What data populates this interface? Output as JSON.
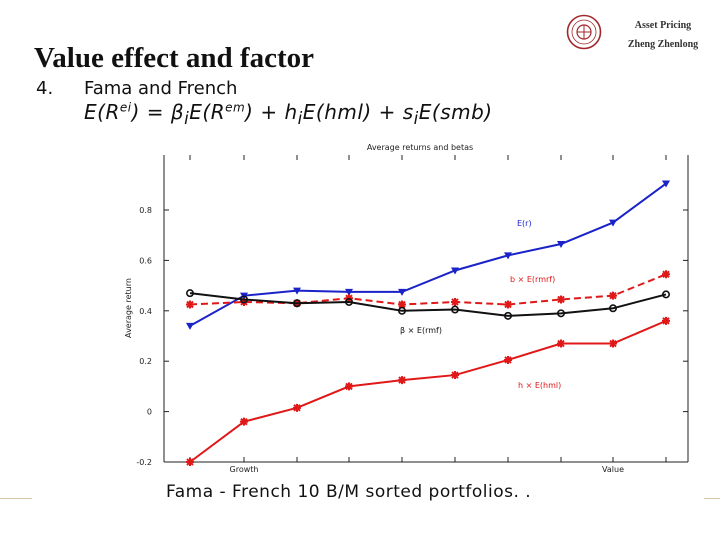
{
  "slide": {
    "title": "Value effect and factor",
    "course": "Asset Pricing",
    "author": "Zheng Zhenlong",
    "item_number": "4.",
    "item_heading": "Fama and French",
    "caption": "Fama - French 10 B/M sorted portfolios. ."
  },
  "equation": {
    "lhs": "E(R",
    "lhs_sup": "ei",
    "middle": ") = β",
    "beta_sub": "i",
    "mkt": "E(R",
    "mkt_sup": "em",
    "rest": ") + h",
    "h_sub": "i",
    "hml": "E(hml) + s",
    "s_sub": "i",
    "smb": "E(smb)"
  },
  "colors": {
    "blue": "#1a22c8",
    "red": "#e01818",
    "black": "#111111",
    "axis": "#222222",
    "seal": "#a0282c"
  },
  "chart_data": {
    "type": "line",
    "title": "Average returns and betas",
    "xlabel": "",
    "ylabel": "Average return",
    "x": [
      1,
      2,
      3,
      4,
      5,
      6,
      7,
      8,
      9,
      10
    ],
    "xticks": [
      {
        "x": 2,
        "label": "Growth"
      },
      {
        "x": 9,
        "label": "Value"
      }
    ],
    "yticks": [
      "-0.2",
      "0",
      "0.2",
      "0.4",
      "0.6",
      "0.8"
    ],
    "ylim": [
      -0.2,
      0.93
    ],
    "xlim": [
      1,
      10
    ],
    "grid": false,
    "series": [
      {
        "name": "E(r)",
        "color": "blue",
        "marker": "triangle-down",
        "dash": "solid",
        "values": [
          0.34,
          0.46,
          0.48,
          0.475,
          0.475,
          0.56,
          0.62,
          0.665,
          0.75,
          0.905
        ]
      },
      {
        "name": "b × E(rmrf)",
        "color": "red",
        "marker": "star",
        "dash": "dashed",
        "values": [
          0.425,
          0.435,
          0.43,
          0.45,
          0.425,
          0.435,
          0.425,
          0.445,
          0.46,
          0.545
        ]
      },
      {
        "name": "β × E(rmf)",
        "color": "black",
        "marker": "circle",
        "dash": "solid",
        "values": [
          0.47,
          0.445,
          0.43,
          0.435,
          0.4,
          0.405,
          0.38,
          0.39,
          0.41,
          0.465
        ]
      },
      {
        "name": "h × E(hml)",
        "color": "red",
        "marker": "star",
        "dash": "solid",
        "values": [
          -0.2,
          -0.04,
          0.015,
          0.1,
          0.125,
          0.145,
          0.205,
          0.27,
          0.27,
          0.36
        ]
      }
    ],
    "labels": [
      {
        "series": "E(r)",
        "text": "E(r)"
      },
      {
        "series": "b × E(rmrf)",
        "text": "b × E(rmrf)"
      },
      {
        "series": "β × E(rmf)",
        "text": "β × E(rmf)"
      },
      {
        "series": "h × E(hml)",
        "text": "h × E(hml)"
      }
    ]
  }
}
